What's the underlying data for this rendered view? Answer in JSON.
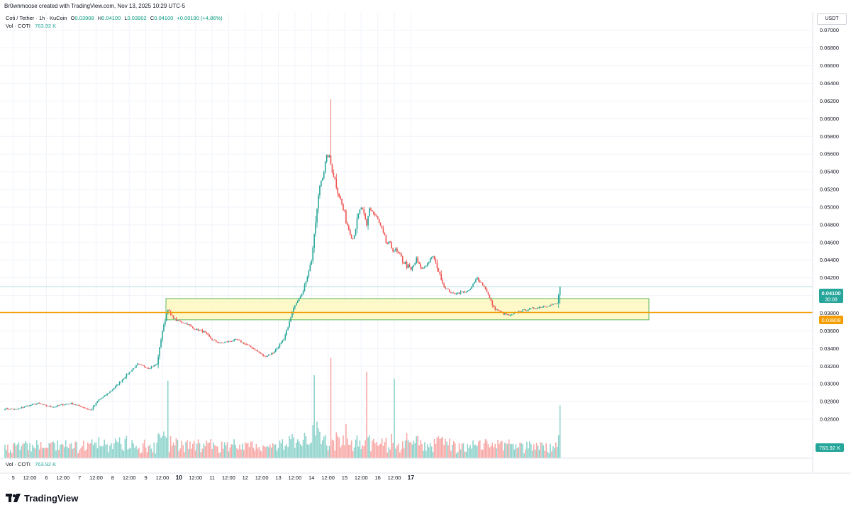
{
  "header": {
    "attribution": "Br0wnmoose created with TradingView.com, Nov 13, 2025 10:29 UTC-5"
  },
  "legend": {
    "symbol": "Coti / Tether · 1h · KuCoin",
    "open_label": "O",
    "open": "0.03908",
    "high_label": "H",
    "high": "0.04100",
    "low_label": "L",
    "low": "0.03902",
    "close_label": "C",
    "close": "0.04100",
    "change": "+0.00190 (+4.86%)",
    "vol_label": "Vol · COTI",
    "vol_value": "763.92 K"
  },
  "volume_pane_legend": {
    "label": "Vol · COTI",
    "value": "763.92 K"
  },
  "price_scale": {
    "currency": "USDT"
  },
  "badges": {
    "last_price": "0.04100",
    "countdown": "30:08",
    "level_price": "0.03808",
    "volume": "763.92 K"
  },
  "brand": {
    "name": "TradingView"
  },
  "colors": {
    "up": "#26a69a",
    "down": "#ef5350",
    "up_vol": "#8fd3cc",
    "down_vol": "#f7a9a7",
    "zone_fill": "#fff9c4",
    "zone_border": "#4caf50",
    "level_line": "#f59d00",
    "last_line": "#26a69a",
    "grid": "#f0f3fa"
  },
  "chart_data": {
    "type": "candlestick",
    "title": "Coti / Tether · 1h · KuCoin",
    "y_ticks": [
      "0.02600",
      "0.02800",
      "0.03000",
      "0.03200",
      "0.03400",
      "0.03600",
      "0.03800",
      "0.04000",
      "0.04200",
      "0.04400",
      "0.04600",
      "0.04800",
      "0.05000",
      "0.05200",
      "0.05400",
      "0.05600",
      "0.05800",
      "0.06000",
      "0.06200",
      "0.06400",
      "0.06600",
      "0.06800",
      "0.07000"
    ],
    "ylim": [
      0.0248,
      0.0703
    ],
    "x_ticks": [
      "5",
      "12:00",
      "6",
      "12:00",
      "7",
      "12:00",
      "8",
      "12:00",
      "9",
      "12:00",
      "10",
      "12:00",
      "11",
      "12:00",
      "12",
      "12:00",
      "13",
      "12:00",
      "14",
      "12:00",
      "15",
      "12:00",
      "16",
      "12:00",
      "17"
    ],
    "bold_ticks": [
      "10",
      "17"
    ],
    "last_price": 0.041,
    "horizontal_level": 0.03808,
    "support_zone": {
      "low": 0.03725,
      "high": 0.03965,
      "from": "Nov 7 12:00",
      "to": "Nov 14 14:00"
    },
    "path_anchors_hours": [
      0,
      8,
      16,
      24,
      30,
      36,
      40,
      48,
      56,
      62,
      68,
      72,
      78,
      84,
      88,
      96,
      104,
      110,
      114,
      118,
      120,
      124,
      132,
      136,
      144,
      150,
      156,
      168,
      174,
      180,
      188,
      194,
      202,
      210,
      216,
      222,
      228,
      234,
      240,
      248,
      252,
      256,
      258,
      262,
      264,
      270,
      276,
      282,
      288,
      294,
      298,
      302,
      306,
      310,
      318,
      324,
      336,
      342,
      348,
      354,
      360,
      366,
      372,
      378,
      384,
      392,
      400,
      402
    ],
    "path_anchors_close": [
      0.0272,
      0.0271,
      0.0275,
      0.0278,
      0.0275,
      0.0274,
      0.0276,
      0.0278,
      0.0274,
      0.027,
      0.0282,
      0.0286,
      0.0294,
      0.0303,
      0.031,
      0.0322,
      0.0318,
      0.0322,
      0.036,
      0.0385,
      0.0378,
      0.0372,
      0.0368,
      0.0363,
      0.0359,
      0.035,
      0.0346,
      0.035,
      0.0345,
      0.034,
      0.0331,
      0.0335,
      0.035,
      0.039,
      0.0405,
      0.044,
      0.0525,
      0.056,
      0.0525,
      0.048,
      0.0465,
      0.049,
      0.05,
      0.0478,
      0.05,
      0.0485,
      0.046,
      0.0452,
      0.044,
      0.0428,
      0.044,
      0.043,
      0.0436,
      0.0445,
      0.041,
      0.0402,
      0.0405,
      0.042,
      0.0408,
      0.0386,
      0.038,
      0.0377,
      0.0382,
      0.0384,
      0.0386,
      0.0388,
      0.0391,
      0.041
    ],
    "volume_scale_max_k": 1600,
    "last_volume_k": 763.92
  }
}
